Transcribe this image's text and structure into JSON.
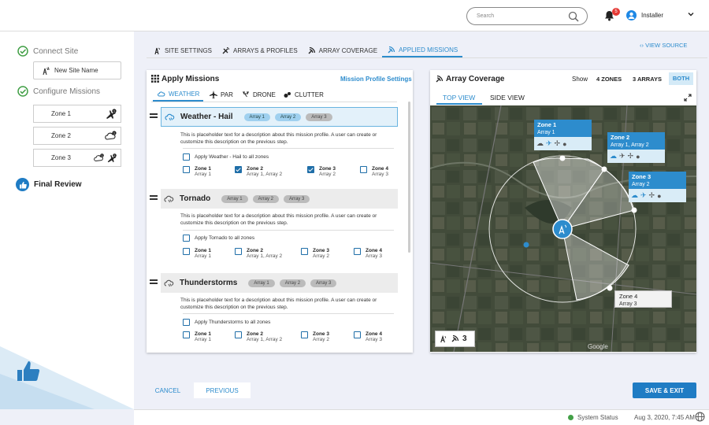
{
  "header": {
    "search_placeholder": "Search",
    "notification_count": "5",
    "user_name": "Installer"
  },
  "sidebar": {
    "steps": [
      {
        "label": "Connect Site"
      },
      {
        "label": "Configure Missions"
      }
    ],
    "site_name_placeholder": "New Site Name",
    "zones": [
      "Zone 1",
      "Zone 2",
      "Zone 3"
    ],
    "final_review": "Final Review"
  },
  "tabs": [
    {
      "label": "SITE SETTINGS",
      "icon": "pin-icon"
    },
    {
      "label": "ARRAYS & PROFILES",
      "icon": "satellite-icon"
    },
    {
      "label": "ARRAY COVERAGE",
      "icon": "coverage-icon"
    },
    {
      "label": "APPLIED MISSIONS",
      "icon": "coverage-icon",
      "active": true
    }
  ],
  "view_source": "VIEW SOURCE",
  "apply_panel": {
    "title": "Apply Missions",
    "settings_link": "Mission Profile Settings",
    "mission_tabs": [
      {
        "label": "WEATHER",
        "active": true
      },
      {
        "label": "PAR"
      },
      {
        "label": "DRONE"
      },
      {
        "label": "CLUTTER"
      }
    ],
    "missions": [
      {
        "name": "Weather - Hail",
        "arrays": [
          "Array 1",
          "Array 2",
          "Array 3"
        ],
        "description": "This is placeholder text for a description about this mission profile. A user can create or customize this description on the previous step.",
        "apply_all": "Apply Weather - Hail to all zones",
        "zones": [
          {
            "name": "Zone 1",
            "arrays": "Array 1",
            "checked": false
          },
          {
            "name": "Zone 2",
            "arrays": "Array 1, Array 2",
            "checked": true
          },
          {
            "name": "Zone 3",
            "arrays": "Array 2",
            "checked": true
          },
          {
            "name": "Zone 4",
            "arrays": "Array 3",
            "checked": false
          }
        ]
      },
      {
        "name": "Tornado",
        "arrays": [
          "Array 1",
          "Array 2",
          "Array 3"
        ],
        "description": "This is placeholder text for a description about this mission profile. A user can create or customize this description on the previous step.",
        "apply_all": "Apply Tornado to all zones",
        "zones": [
          {
            "name": "Zone 1",
            "arrays": "Array 1",
            "checked": false
          },
          {
            "name": "Zone 2",
            "arrays": "Array 1, Array 2",
            "checked": false
          },
          {
            "name": "Zone 3",
            "arrays": "Array 2",
            "checked": false
          },
          {
            "name": "Zone 4",
            "arrays": "Array 3",
            "checked": false
          }
        ]
      },
      {
        "name": "Thunderstorms",
        "arrays": [
          "Array 1",
          "Array 2",
          "Array 3"
        ],
        "description": "This is placeholder text for a description about this mission profile. A user can create or customize this description on the previous step.",
        "apply_all": "Apply Thunderstorms to all zones",
        "zones": [
          {
            "name": "Zone 1",
            "arrays": "Array 1",
            "checked": false
          },
          {
            "name": "Zone 2",
            "arrays": "Array 1, Array 2",
            "checked": false
          },
          {
            "name": "Zone 3",
            "arrays": "Array 2",
            "checked": false
          },
          {
            "name": "Zone 4",
            "arrays": "Array 3",
            "checked": false
          }
        ]
      }
    ]
  },
  "coverage_panel": {
    "title": "Array Coverage",
    "show_label": "Show",
    "show_options": [
      "4 ZONES",
      "3 ARRAYS",
      "BOTH"
    ],
    "view_tabs": [
      "TOP VIEW",
      "SIDE VIEW"
    ],
    "zone_cards": [
      {
        "name": "Zone 1",
        "arrays": "Array 1"
      },
      {
        "name": "Zone 2",
        "arrays": "Array 1, Array 2"
      },
      {
        "name": "Zone 3",
        "arrays": "Array 2"
      },
      {
        "name": "Zone 4",
        "arrays": "Array 3"
      }
    ],
    "legend_count": "3",
    "map_credit": "Google"
  },
  "actions": {
    "cancel": "CANCEL",
    "previous": "PREVIOUS",
    "save_exit": "SAVE & EXIT"
  },
  "footer": {
    "system_status": "System Status",
    "datetime": "Aug 3, 2020, 7:45 AM"
  },
  "colors": {
    "accent": "#2d8ccd",
    "check_green": "#43a047",
    "save_button": "#1f7cc4"
  }
}
